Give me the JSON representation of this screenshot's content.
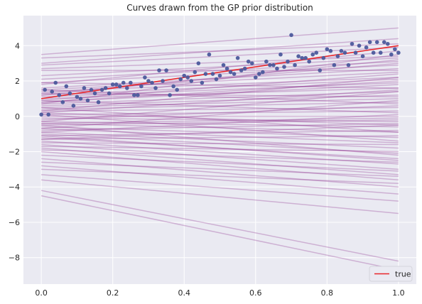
{
  "chart_data": {
    "type": "line",
    "title": "Curves drawn from the GP prior distribution",
    "xlabel": "",
    "ylabel": "",
    "xlim": [
      -0.05,
      1.05
    ],
    "ylim": [
      -9.5,
      5.7
    ],
    "xticks": [
      0.0,
      0.2,
      0.4,
      0.6,
      0.8,
      1.0
    ],
    "xtick_labels": [
      "0.0",
      "0.2",
      "0.4",
      "0.6",
      "0.8",
      "1.0"
    ],
    "yticks": [
      -8,
      -6,
      -4,
      -2,
      0,
      2,
      4
    ],
    "ytick_labels": [
      "−8",
      "−6",
      "−4",
      "−2",
      "0",
      "2",
      "4"
    ],
    "grid": true,
    "legend": {
      "placement": "lower-right",
      "entries": [
        {
          "label": "true",
          "color": "#e8262a"
        }
      ]
    },
    "colors": {
      "background": "#eaeaf2",
      "grid": "#ffffff",
      "prior_curves": "#8b2a8c",
      "points": "#4c5a9c",
      "true_line": "#e8262a"
    },
    "true_line": {
      "name": "true",
      "x": [
        0.0,
        1.0
      ],
      "y": [
        1.0,
        4.0
      ]
    },
    "scatter": {
      "x": [
        0.0,
        0.01,
        0.02,
        0.03,
        0.04,
        0.05,
        0.06,
        0.07,
        0.08,
        0.09,
        0.1,
        0.11,
        0.12,
        0.13,
        0.14,
        0.15,
        0.16,
        0.17,
        0.18,
        0.19,
        0.2,
        0.21,
        0.22,
        0.23,
        0.24,
        0.25,
        0.26,
        0.27,
        0.28,
        0.29,
        0.3,
        0.31,
        0.32,
        0.33,
        0.34,
        0.35,
        0.36,
        0.37,
        0.38,
        0.39,
        0.4,
        0.41,
        0.42,
        0.43,
        0.44,
        0.45,
        0.46,
        0.47,
        0.48,
        0.49,
        0.5,
        0.51,
        0.52,
        0.53,
        0.54,
        0.55,
        0.56,
        0.57,
        0.58,
        0.59,
        0.6,
        0.61,
        0.62,
        0.63,
        0.64,
        0.65,
        0.66,
        0.67,
        0.68,
        0.69,
        0.7,
        0.71,
        0.72,
        0.73,
        0.74,
        0.75,
        0.76,
        0.77,
        0.78,
        0.79,
        0.8,
        0.81,
        0.82,
        0.83,
        0.84,
        0.85,
        0.86,
        0.87,
        0.88,
        0.89,
        0.9,
        0.91,
        0.92,
        0.93,
        0.94,
        0.95,
        0.96,
        0.97,
        0.98,
        0.99,
        1.0
      ],
      "y": [
        0.1,
        1.5,
        0.1,
        1.4,
        1.9,
        1.2,
        0.8,
        1.7,
        1.3,
        0.6,
        1.1,
        1.0,
        1.6,
        0.9,
        1.5,
        1.3,
        0.8,
        1.5,
        1.6,
        1.3,
        1.8,
        1.8,
        1.7,
        1.9,
        1.6,
        1.9,
        1.2,
        1.2,
        1.7,
        2.2,
        2.0,
        1.9,
        1.6,
        2.6,
        2.0,
        2.6,
        1.2,
        1.7,
        1.5,
        2.1,
        2.3,
        2.2,
        2.0,
        2.5,
        3.0,
        1.9,
        2.4,
        3.5,
        2.4,
        2.1,
        2.3,
        2.9,
        2.7,
        2.5,
        2.4,
        3.3,
        2.6,
        2.7,
        3.1,
        3.0,
        2.2,
        2.4,
        2.5,
        3.1,
        2.9,
        2.9,
        2.7,
        3.5,
        2.8,
        3.1,
        4.6,
        2.9,
        3.4,
        3.3,
        3.3,
        3.1,
        3.5,
        3.6,
        2.6,
        3.3,
        3.8,
        3.7,
        2.9,
        3.4,
        3.7,
        3.6,
        2.9,
        4.1,
        3.6,
        4.0,
        3.4,
        3.9,
        4.2,
        3.6,
        4.2,
        3.6,
        4.2,
        4.1,
        3.5,
        3.8,
        3.6
      ]
    },
    "series": [
      {
        "values": [
          3.5,
          5.0
        ]
      },
      {
        "values": [
          3.3,
          4.1
        ]
      },
      {
        "values": [
          2.9,
          3.9
        ]
      },
      {
        "values": [
          2.7,
          3.4
        ]
      },
      {
        "values": [
          2.3,
          3.3
        ]
      },
      {
        "values": [
          2.1,
          3.1
        ]
      },
      {
        "values": [
          1.9,
          2.9
        ]
      },
      {
        "values": [
          1.8,
          3.7
        ]
      },
      {
        "values": [
          1.6,
          2.7
        ]
      },
      {
        "values": [
          1.5,
          2.5
        ]
      },
      {
        "values": [
          1.4,
          2.2
        ]
      },
      {
        "values": [
          1.3,
          3.0
        ]
      },
      {
        "values": [
          1.2,
          2.1
        ]
      },
      {
        "values": [
          1.1,
          1.9
        ]
      },
      {
        "values": [
          1.0,
          1.6
        ]
      },
      {
        "values": [
          0.9,
          2.4
        ]
      },
      {
        "values": [
          0.8,
          1.8
        ]
      },
      {
        "values": [
          0.7,
          1.4
        ]
      },
      {
        "values": [
          0.6,
          1.2
        ]
      },
      {
        "values": [
          0.5,
          1.0
        ]
      },
      {
        "values": [
          0.4,
          0.8
        ]
      },
      {
        "values": [
          0.3,
          0.5
        ]
      },
      {
        "values": [
          0.2,
          1.5
        ]
      },
      {
        "values": [
          0.1,
          0.3
        ]
      },
      {
        "values": [
          0.0,
          0.0
        ]
      },
      {
        "values": [
          -0.1,
          -0.3
        ]
      },
      {
        "values": [
          -0.2,
          0.6
        ]
      },
      {
        "values": [
          -0.3,
          -0.6
        ]
      },
      {
        "values": [
          -0.4,
          -0.9
        ]
      },
      {
        "values": [
          -0.5,
          -0.2
        ]
      },
      {
        "values": [
          -0.6,
          -1.2
        ]
      },
      {
        "values": [
          -0.7,
          -1.5
        ]
      },
      {
        "values": [
          -0.8,
          -0.4
        ]
      },
      {
        "values": [
          -0.9,
          -1.8
        ]
      },
      {
        "values": [
          -1.0,
          -2.1
        ]
      },
      {
        "values": [
          -1.1,
          -0.8
        ]
      },
      {
        "values": [
          -1.2,
          -2.4
        ]
      },
      {
        "values": [
          -1.3,
          -1.1
        ]
      },
      {
        "values": [
          -1.4,
          -2.7
        ]
      },
      {
        "values": [
          -1.5,
          -1.6
        ]
      },
      {
        "values": [
          -1.6,
          -3.0
        ]
      },
      {
        "values": [
          -1.7,
          -2.0
        ]
      },
      {
        "values": [
          -1.8,
          -3.3
        ]
      },
      {
        "values": [
          -1.9,
          -2.6
        ]
      },
      {
        "values": [
          -2.0,
          -3.6
        ]
      },
      {
        "values": [
          -2.2,
          -3.1
        ]
      },
      {
        "values": [
          -2.4,
          -4.0
        ]
      },
      {
        "values": [
          -2.6,
          -3.4
        ]
      },
      {
        "values": [
          -2.8,
          -4.4
        ]
      },
      {
        "values": [
          -3.0,
          -3.8
        ]
      },
      {
        "values": [
          -3.3,
          -4.8
        ]
      },
      {
        "values": [
          -3.6,
          -5.5
        ]
      },
      {
        "values": [
          -4.2,
          -8.2
        ]
      },
      {
        "values": [
          -4.5,
          -8.7
        ]
      },
      {
        "values": [
          0.7,
          3.5
        ]
      },
      {
        "values": [
          0.3,
          2.2
        ]
      },
      {
        "values": [
          -0.3,
          1.4
        ]
      },
      {
        "values": [
          -0.7,
          0.9
        ]
      },
      {
        "values": [
          1.2,
          3.2
        ]
      },
      {
        "values": [
          0.9,
          0.2
        ]
      },
      {
        "values": [
          1.5,
          0.7
        ]
      },
      {
        "values": [
          0.5,
          -0.9
        ]
      },
      {
        "values": [
          0.1,
          -1.4
        ]
      },
      {
        "values": [
          -0.5,
          -2.2
        ]
      },
      {
        "values": [
          1.9,
          1.6
        ]
      },
      {
        "values": [
          2.6,
          2.6
        ]
      },
      {
        "values": [
          3.0,
          4.4
        ]
      },
      {
        "values": [
          -1.3,
          -0.5
        ]
      },
      {
        "values": [
          -0.9,
          0.1
        ]
      },
      {
        "values": [
          0.2,
          -0.5
        ]
      },
      {
        "values": [
          0.8,
          2.0
        ]
      },
      {
        "values": [
          1.3,
          1.1
        ]
      },
      {
        "values": [
          -1.1,
          -2.5
        ]
      },
      {
        "values": [
          -0.4,
          -0.1
        ]
      }
    ]
  }
}
